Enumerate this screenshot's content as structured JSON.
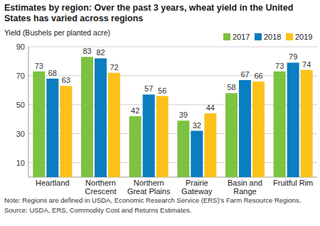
{
  "chart_data": {
    "type": "bar",
    "title": "Estimates by region: Over the past 3 years, wheat yield in the United States has varied across regions",
    "y_label": "Yield (Bushels per planted acre)",
    "note": "Note: Regions are defined in USDA, Economic Research Service (ERS)’s Farm Resource Regions.",
    "source": "Source: USDA, ERS, Commodity Cost and Returns Estimates.",
    "categories": [
      "Heartland",
      "Northern Crescent",
      "Northern Great Plains",
      "Prairie Gateway",
      "Basin and Range",
      "Fruitful Rim"
    ],
    "series": [
      {
        "name": "2017",
        "color": "#7dc242",
        "values": [
          73,
          83,
          42,
          39,
          58,
          73
        ]
      },
      {
        "name": "2018",
        "color": "#0b7dc1",
        "values": [
          68,
          82,
          57,
          32,
          67,
          79
        ]
      },
      {
        "name": "2019",
        "color": "#fcc21b",
        "values": [
          63,
          72,
          56,
          44,
          66,
          74
        ]
      }
    ],
    "ylim": [
      0,
      90
    ],
    "yticks": [
      10,
      30,
      50,
      70,
      90
    ],
    "grid": true,
    "legend": "top-right",
    "data_labels": true
  }
}
